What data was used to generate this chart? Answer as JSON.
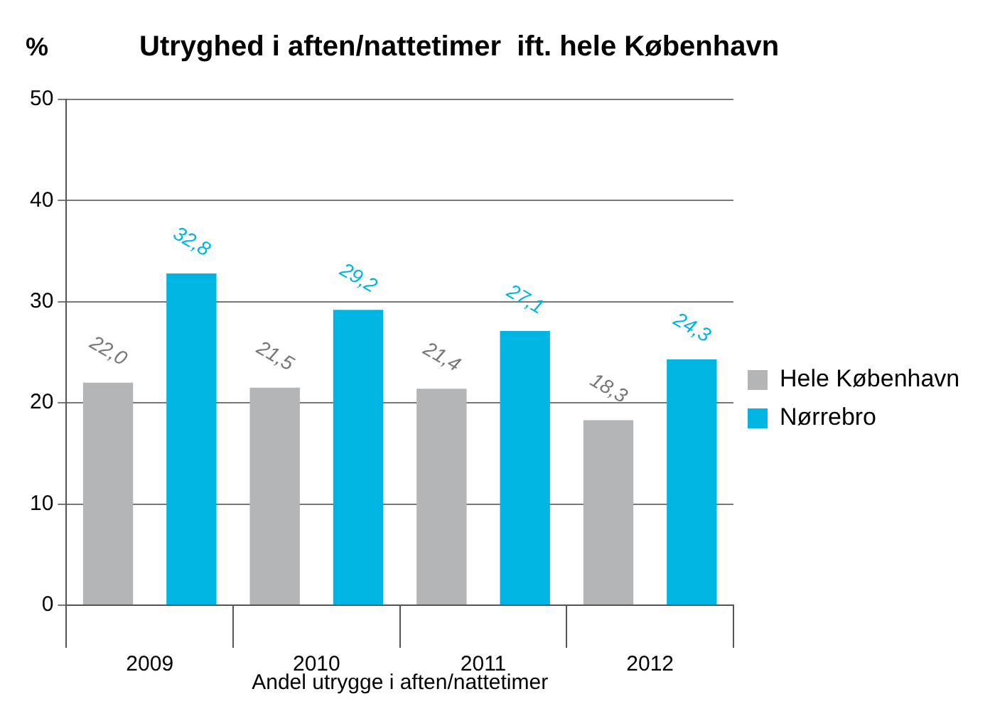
{
  "chart_data": {
    "type": "bar",
    "title": "Utryghed i aften/nattetimer  ift. hele København",
    "ylabel": "%",
    "xlabel": "Andel utrygge i aften/nattetimer",
    "categories": [
      "2009",
      "2010",
      "2011",
      "2012"
    ],
    "series": [
      {
        "name": "Hele København",
        "color": "#b3b5b6",
        "values": [
          22.0,
          21.5,
          21.4,
          18.3
        ],
        "value_labels": [
          "22,0",
          "21,5",
          "21,4",
          "18,3"
        ]
      },
      {
        "name": "Nørrebro",
        "color": "#00b5e2",
        "values": [
          32.8,
          29.2,
          27.1,
          24.3
        ],
        "value_labels": [
          "32,8",
          "29,2",
          "27,1",
          "24,3"
        ]
      }
    ],
    "ylim": [
      0,
      50
    ],
    "yticks": [
      0,
      10,
      20,
      30,
      40,
      50
    ],
    "grid": "y",
    "legend": "right"
  }
}
